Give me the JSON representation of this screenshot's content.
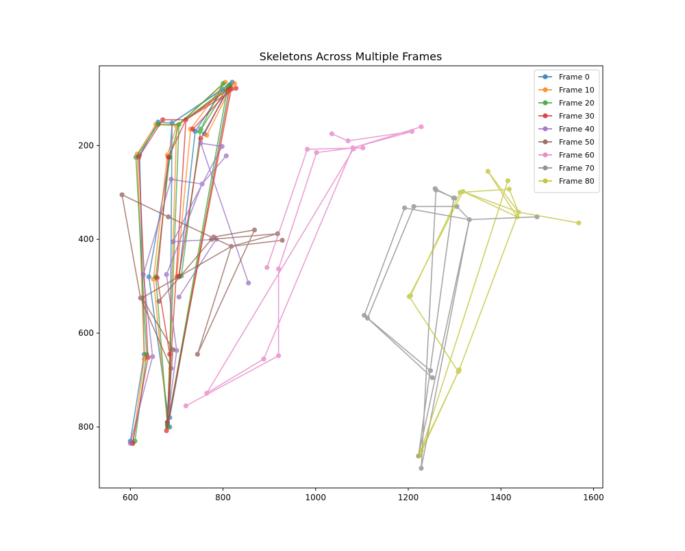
{
  "chart_data": {
    "type": "line",
    "title": "Skeletons Across Multiple Frames",
    "xlabel": "",
    "ylabel": "",
    "xlim": [
      533,
      1620
    ],
    "ylim": [
      930,
      30
    ],
    "y_inverted": true,
    "grid": false,
    "legend_position": "top-right",
    "x_ticks": [
      600,
      800,
      1000,
      1200,
      1400,
      1600
    ],
    "y_ticks": [
      200,
      400,
      600,
      800
    ],
    "edges": [
      [
        0,
        1
      ],
      [
        1,
        2
      ],
      [
        2,
        3
      ],
      [
        3,
        4
      ],
      [
        4,
        5
      ],
      [
        1,
        6
      ],
      [
        6,
        7
      ],
      [
        7,
        8
      ],
      [
        1,
        9
      ],
      [
        9,
        10
      ],
      [
        10,
        11
      ],
      [
        1,
        12
      ],
      [
        12,
        13
      ],
      [
        13,
        14
      ]
    ],
    "series": [
      {
        "name": "Frame 0",
        "color": "#1f77b4",
        "points": [
          [
            820,
            65
          ],
          [
            690,
            152
          ],
          [
            660,
            150
          ],
          [
            620,
            220
          ],
          [
            630,
            645
          ],
          [
            600,
            830
          ],
          [
            800,
            80
          ],
          [
            740,
            170
          ],
          [
            705,
            480
          ],
          [
            685,
            780
          ],
          [
            815,
            70
          ],
          [
            760,
            175
          ],
          [
            685,
            225
          ],
          [
            640,
            480
          ],
          [
            685,
            800
          ]
        ]
      },
      {
        "name": "Frame 10",
        "color": "#ff7f0e",
        "points": [
          [
            825,
            68
          ],
          [
            700,
            158
          ],
          [
            655,
            155
          ],
          [
            615,
            218
          ],
          [
            630,
            655
          ],
          [
            605,
            835
          ],
          [
            805,
            65
          ],
          [
            730,
            165
          ],
          [
            700,
            480
          ],
          [
            680,
            795
          ],
          [
            815,
            80
          ],
          [
            765,
            178
          ],
          [
            680,
            220
          ],
          [
            650,
            485
          ],
          [
            680,
            790
          ]
        ]
      },
      {
        "name": "Frame 20",
        "color": "#2ca02c",
        "points": [
          [
            815,
            72
          ],
          [
            705,
            155
          ],
          [
            660,
            155
          ],
          [
            612,
            225
          ],
          [
            635,
            645
          ],
          [
            610,
            830
          ],
          [
            800,
            68
          ],
          [
            752,
            165
          ],
          [
            710,
            478
          ],
          [
            680,
            800
          ],
          [
            810,
            75
          ],
          [
            750,
            170
          ],
          [
            685,
            225
          ],
          [
            655,
            480
          ],
          [
            680,
            795
          ]
        ]
      },
      {
        "name": "Frame 30",
        "color": "#d62728",
        "points": [
          [
            828,
            78
          ],
          [
            720,
            145
          ],
          [
            670,
            145
          ],
          [
            618,
            225
          ],
          [
            638,
            652
          ],
          [
            605,
            835
          ],
          [
            812,
            80
          ],
          [
            752,
            185
          ],
          [
            705,
            478
          ],
          [
            678,
            808
          ],
          [
            818,
            78
          ],
          [
            735,
            165
          ],
          [
            682,
            225
          ],
          [
            658,
            482
          ],
          [
            685,
            645
          ]
        ]
      },
      {
        "name": "Frame 40",
        "color": "#9467bd",
        "points": [
          [
            807,
            222
          ],
          [
            755,
            282
          ],
          [
            688,
            272
          ],
          [
            628,
            475
          ],
          [
            648,
            650
          ],
          [
            600,
            835
          ],
          [
            798,
            202
          ],
          [
            752,
            195
          ],
          [
            855,
            493
          ],
          [
            692,
            405
          ],
          [
            785,
            400
          ],
          [
            705,
            523
          ],
          [
            678,
            475
          ],
          [
            700,
            637
          ],
          [
            680,
            790
          ]
        ]
      },
      {
        "name": "Frame 50",
        "color": "#8c564b",
        "points": [
          [
            928,
            402
          ],
          [
            818,
            415
          ],
          [
            682,
            352
          ],
          [
            582,
            305
          ],
          [
            622,
            525
          ],
          [
            688,
            675
          ],
          [
            918,
            388
          ],
          [
            775,
            400
          ],
          [
            662,
            532
          ],
          [
            745,
            645
          ],
          [
            868,
            380
          ],
          [
            780,
            395
          ],
          [
            625,
            525
          ],
          [
            692,
            635
          ],
          [
            680,
            790
          ]
        ]
      },
      {
        "name": "Frame 60",
        "color": "#e377c2",
        "points": [
          [
            1228,
            160
          ],
          [
            1080,
            205
          ],
          [
            1002,
            215
          ],
          [
            920,
            463
          ],
          [
            920,
            648
          ],
          [
            720,
            755
          ],
          [
            1208,
            170
          ],
          [
            1070,
            190
          ],
          [
            1035,
            175
          ],
          [
            1102,
            205
          ],
          [
            982,
            208
          ],
          [
            895,
            460
          ],
          [
            888,
            655
          ],
          [
            765,
            728
          ],
          [
            1082,
            207
          ]
        ]
      },
      {
        "name": "Frame 70",
        "color": "#7f7f7f",
        "points": [
          [
            1478,
            352
          ],
          [
            1332,
            358
          ],
          [
            1305,
            330
          ],
          [
            1212,
            330
          ],
          [
            1112,
            568
          ],
          [
            1252,
            695
          ],
          [
            1222,
            862
          ],
          [
            1298,
            312
          ],
          [
            1258,
            292
          ],
          [
            1192,
            333
          ],
          [
            1105,
            562
          ],
          [
            1248,
            680
          ],
          [
            1228,
            888
          ],
          [
            1260,
            295
          ],
          [
            1300,
            312
          ]
        ]
      },
      {
        "name": "Frame 80",
        "color": "#bcbd22",
        "points": [
          [
            1568,
            365
          ],
          [
            1438,
            342
          ],
          [
            1318,
            298
          ],
          [
            1202,
            522
          ],
          [
            1308,
            682
          ],
          [
            1225,
            860
          ],
          [
            1418,
            293
          ],
          [
            1312,
            300
          ],
          [
            1205,
            520
          ],
          [
            1310,
            678
          ],
          [
            1228,
            850
          ],
          [
            1415,
            275
          ],
          [
            1372,
            255
          ],
          [
            1435,
            352
          ],
          [
            1318,
            298
          ]
        ]
      }
    ]
  }
}
